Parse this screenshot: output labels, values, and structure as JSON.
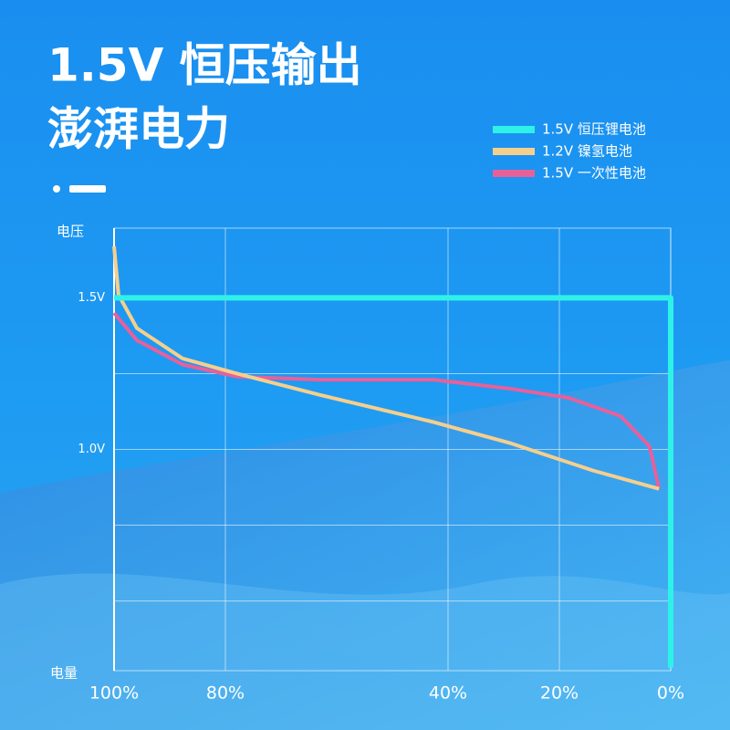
{
  "chart_data": {
    "type": "line",
    "title": "1.5V 恒压输出",
    "subtitle": "澎湃电力",
    "y_axis_label": "电压",
    "x_axis_label": "电量",
    "xlim": [
      100,
      0
    ],
    "xticks": [
      {
        "value": 100,
        "label": "100%"
      },
      {
        "value": 80,
        "label": "80%"
      },
      {
        "value": 40,
        "label": "40%"
      },
      {
        "value": 20,
        "label": "20%"
      },
      {
        "value": 0,
        "label": "0%"
      }
    ],
    "ylim": [
      0.27,
      1.73
    ],
    "yticks": [
      {
        "value": 0.5,
        "label": null
      },
      {
        "value": 0.75,
        "label": null
      },
      {
        "value": 1.0,
        "label": "1.0V"
      },
      {
        "value": 1.25,
        "label": null
      },
      {
        "value": 1.5,
        "label": "1.5V"
      }
    ],
    "grid": true,
    "legend": "upper right",
    "series": [
      {
        "name": "1.5V 恒压锂电池",
        "color": "#2ef2e8",
        "width": 6,
        "x": [
          100,
          0,
          0
        ],
        "values": [
          1.5,
          1.5,
          0.28
        ]
      },
      {
        "name": "1.2V 镍氢电池",
        "color": "#f5cf8e",
        "width": 4,
        "x": [
          100,
          99.2,
          95.9,
          87.7,
          77.9,
          63.1,
          42.6,
          28.7,
          13.9,
          2.1
        ],
        "values": [
          1.67,
          1.51,
          1.4,
          1.3,
          1.25,
          1.18,
          1.09,
          1.02,
          0.93,
          0.87
        ]
      },
      {
        "name": "1.5V 一次性电池",
        "color": "#e8609a",
        "width": 4,
        "x": [
          100,
          95.9,
          87.7,
          77.9,
          63.1,
          42.6,
          28.7,
          18.3,
          9.0,
          3.8,
          2.1
        ],
        "values": [
          1.45,
          1.36,
          1.28,
          1.24,
          1.23,
          1.23,
          1.2,
          1.17,
          1.11,
          1.01,
          0.87
        ]
      }
    ]
  }
}
